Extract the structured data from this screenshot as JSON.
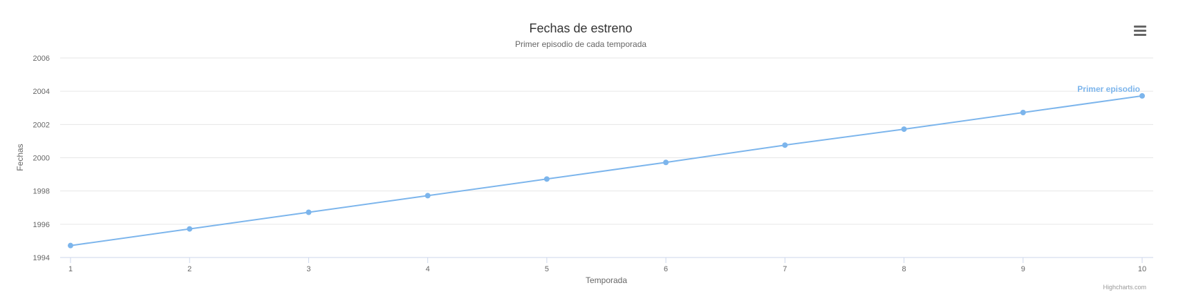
{
  "chart_data": {
    "type": "line",
    "title": "Fechas de estreno",
    "subtitle": "Primer episodio de cada temporada",
    "xlabel": "Temporada",
    "ylabel": "Fechas",
    "x": [
      1,
      2,
      3,
      4,
      5,
      6,
      7,
      8,
      9,
      10
    ],
    "xlim": [
      1,
      10
    ],
    "ylim": [
      1994,
      2006
    ],
    "yticks": [
      "1994",
      "1996",
      "1998",
      "2000",
      "2002",
      "2004",
      "2006"
    ],
    "xticks": [
      "1",
      "2",
      "3",
      "4",
      "5",
      "6",
      "7",
      "8",
      "9",
      "10"
    ],
    "grid": true,
    "series": [
      {
        "name": "Primer episodio",
        "color": "#7cb5ec",
        "values": [
          1994.72,
          1995.72,
          1996.72,
          1997.72,
          1998.72,
          1999.72,
          2000.76,
          2001.72,
          2002.72,
          2003.72
        ]
      }
    ],
    "credits": "Highcharts.com"
  },
  "toolbar": {
    "menu_icon": "hamburger-menu-icon"
  }
}
